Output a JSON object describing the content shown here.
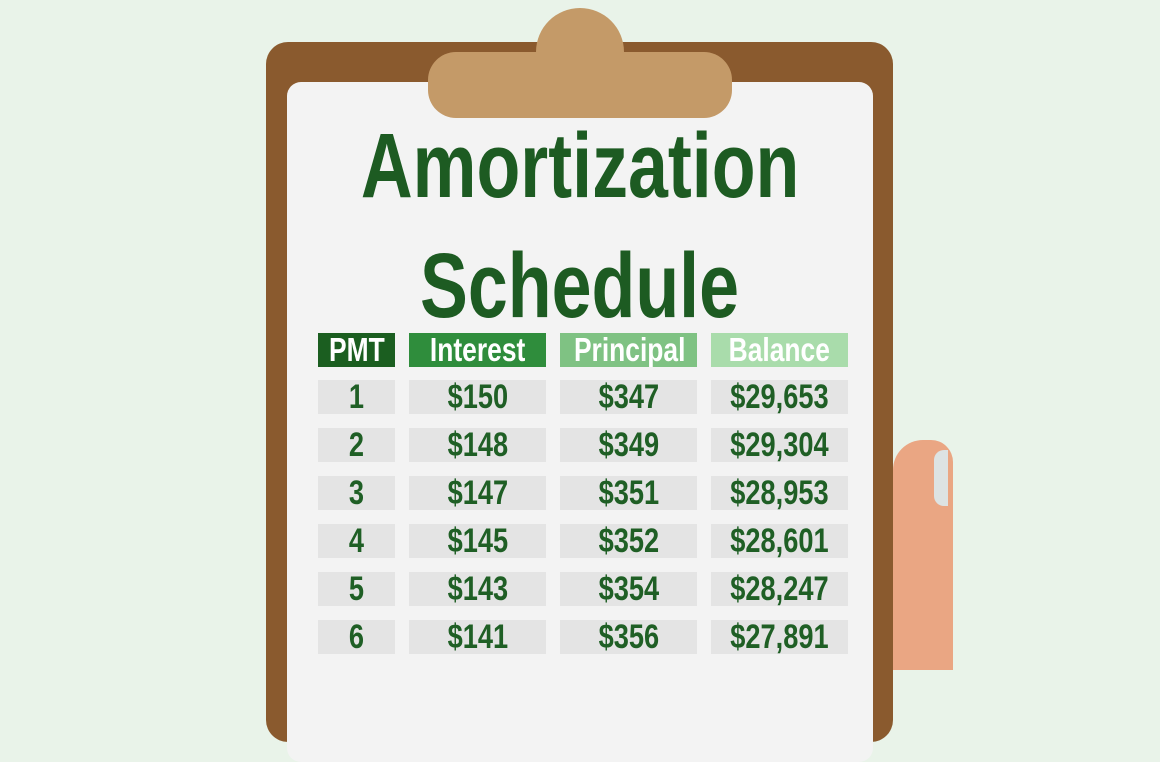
{
  "title_line1": "Amortization",
  "title_line2": "Schedule",
  "table": {
    "headers": [
      "PMT",
      "Interest",
      "Principal",
      "Balance"
    ],
    "header_colors": [
      "#1b5e20",
      "#2f8d3c",
      "#7fc283",
      "#a9dcab"
    ],
    "rows": [
      [
        "1",
        "$150",
        "$347",
        "$29,653"
      ],
      [
        "2",
        "$148",
        "$349",
        "$29,304"
      ],
      [
        "3",
        "$147",
        "$351",
        "$28,953"
      ],
      [
        "4",
        "$145",
        "$352",
        "$28,601"
      ],
      [
        "5",
        "$143",
        "$354",
        "$28,247"
      ],
      [
        "6",
        "$141",
        "$356",
        "$27,891"
      ]
    ]
  },
  "colors": {
    "text": "#1d5b22",
    "board": "#8a5a2e",
    "clip": "#c49a68",
    "background": "#e9f3e9",
    "hand": "#eaa683"
  }
}
